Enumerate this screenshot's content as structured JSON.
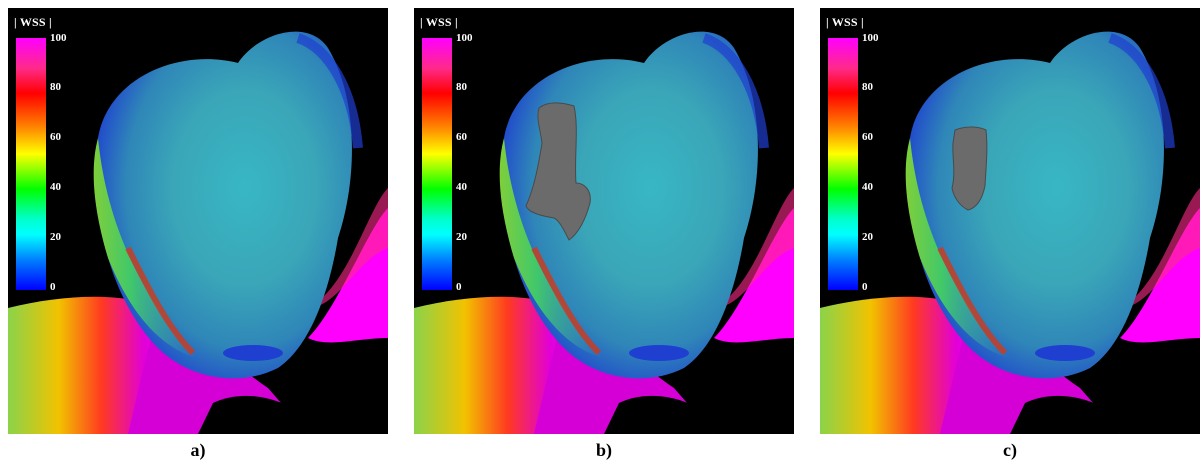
{
  "panels": [
    {
      "caption": "a)",
      "has_overlay": false
    },
    {
      "caption": "b)",
      "has_overlay": true,
      "overlay": "large"
    },
    {
      "caption": "c)",
      "has_overlay": true,
      "overlay": "small"
    }
  ],
  "legend": {
    "title": "| WSS |",
    "ticks": [
      "100",
      "80",
      "60",
      "40",
      "20",
      "0"
    ],
    "colors": [
      "#ff00ff",
      "#ff0000",
      "#ffff00",
      "#00ff00",
      "#00ffff",
      "#0000ff"
    ]
  },
  "colors": {
    "background": "#000000",
    "overlay": "#6b6b6b"
  }
}
